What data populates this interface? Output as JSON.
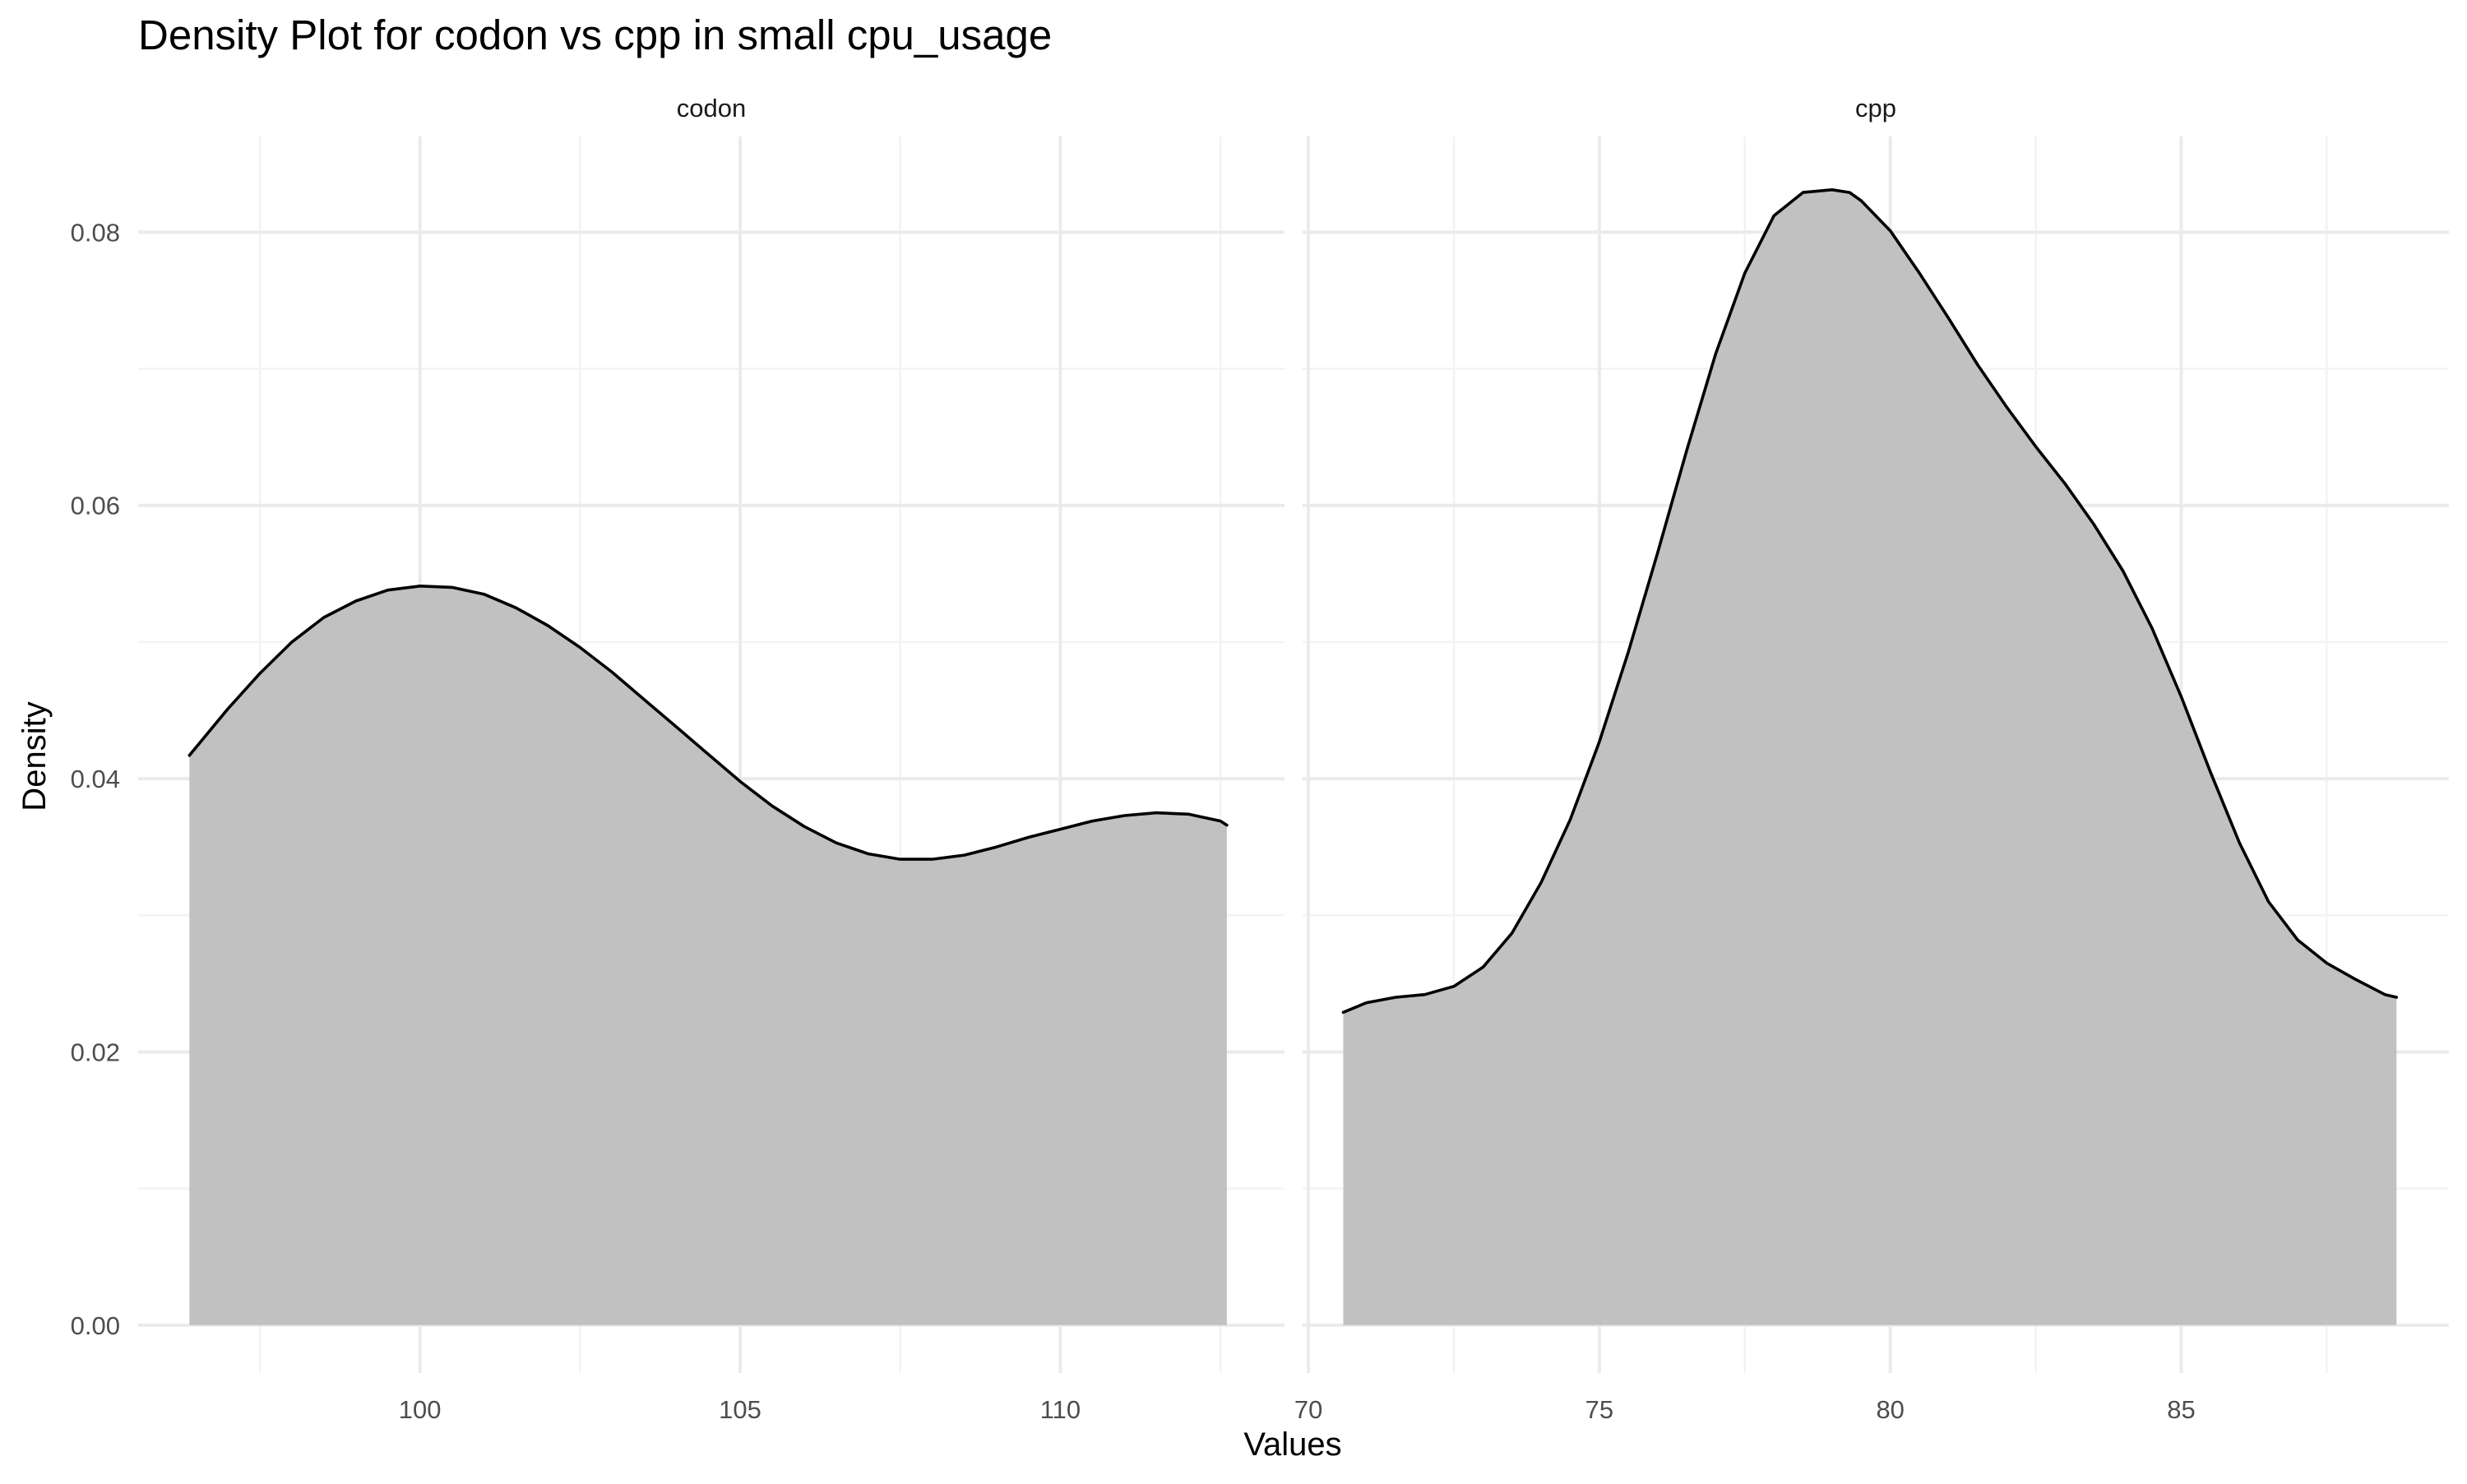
{
  "chart_data": {
    "type": "area",
    "title": "Density Plot for codon vs cpp in small cpu_usage",
    "xlabel": "Values",
    "ylabel": "Density",
    "ylim": [
      -0.0035,
      0.087
    ],
    "y_ticks": [
      0.0,
      0.02,
      0.04,
      0.06,
      0.08
    ],
    "y_tick_labels": [
      "0.00",
      "0.02",
      "0.04",
      "0.06",
      "0.08"
    ],
    "grid": true,
    "colors": {
      "fill": "#bebebe",
      "line": "#000000"
    },
    "panels": [
      {
        "name": "codon",
        "xlim": [
          95.6,
          113.5
        ],
        "x_ticks": [
          100,
          105,
          110
        ],
        "x_tick_labels": [
          "100",
          "105",
          "110"
        ],
        "x": [
          96.4,
          97.0,
          97.5,
          98.0,
          98.5,
          99.0,
          99.5,
          100.0,
          100.5,
          101.0,
          101.5,
          102.0,
          102.5,
          103.0,
          103.5,
          104.0,
          104.5,
          105.0,
          105.5,
          106.0,
          106.5,
          107.0,
          107.5,
          108.0,
          108.5,
          109.0,
          109.5,
          110.0,
          110.5,
          111.0,
          111.5,
          112.0,
          112.5,
          112.6
        ],
        "y": [
          0.0417,
          0.0451,
          0.0477,
          0.05,
          0.0518,
          0.053,
          0.0538,
          0.0541,
          0.054,
          0.0535,
          0.0525,
          0.0512,
          0.0496,
          0.0478,
          0.0458,
          0.0438,
          0.0418,
          0.0398,
          0.038,
          0.0365,
          0.0353,
          0.0345,
          0.0341,
          0.0341,
          0.0344,
          0.035,
          0.0357,
          0.0363,
          0.0369,
          0.0373,
          0.0375,
          0.0374,
          0.0369,
          0.0366
        ]
      },
      {
        "name": "cpp",
        "xlim": [
          69.9,
          89.6
        ],
        "x_ticks": [
          70,
          75,
          80,
          85
        ],
        "x_tick_labels": [
          "70",
          "75",
          "80",
          "85"
        ],
        "x": [
          70.6,
          71.0,
          71.5,
          72.0,
          72.5,
          73.0,
          73.5,
          74.0,
          74.5,
          75.0,
          75.5,
          76.0,
          76.5,
          77.0,
          77.5,
          78.0,
          78.5,
          79.0,
          79.3,
          79.5,
          80.0,
          80.5,
          81.0,
          81.5,
          82.0,
          82.5,
          83.0,
          83.5,
          84.0,
          84.5,
          85.0,
          85.5,
          86.0,
          86.5,
          87.0,
          87.5,
          88.0,
          88.5,
          88.7
        ],
        "y": [
          0.0229,
          0.0236,
          0.024,
          0.0242,
          0.0248,
          0.0262,
          0.0287,
          0.0324,
          0.037,
          0.0427,
          0.0493,
          0.0565,
          0.064,
          0.0711,
          0.077,
          0.0812,
          0.0829,
          0.0831,
          0.0829,
          0.0823,
          0.0801,
          0.077,
          0.0737,
          0.0703,
          0.0672,
          0.0643,
          0.0616,
          0.0586,
          0.0552,
          0.051,
          0.046,
          0.0405,
          0.0353,
          0.031,
          0.0282,
          0.0265,
          0.0253,
          0.0242,
          0.024
        ]
      }
    ]
  }
}
